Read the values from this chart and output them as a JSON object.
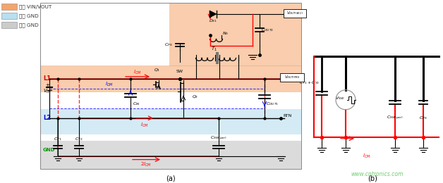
{
  "fig_width": 6.28,
  "fig_height": 2.6,
  "dpi": 100,
  "bg_color": "#ffffff",
  "legend_labels": [
    "电源 VIN/VOUT",
    "电源 GND",
    "底盘 GND"
  ],
  "legend_colors": [
    "#f5a46a",
    "#b8dff0",
    "#cccccc"
  ],
  "watermark": "www.cntronics.com",
  "watermark_color": "#70cc70",
  "label_a": "(a)",
  "label_b": "(b)"
}
